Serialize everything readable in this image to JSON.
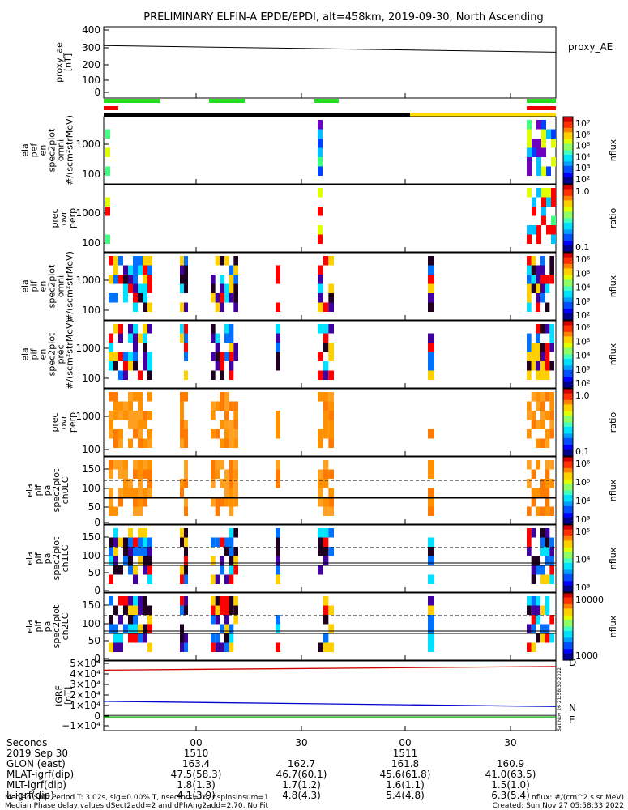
{
  "title": "PRELIMINARY ELFIN-A EPDE/EPDI, alt=458km, 2019-09-30, North Ascending",
  "colors": {
    "green_bar": "#22dd22",
    "red_bar": "#ee0000",
    "black_bar": "#000000",
    "yellow_bar": "#ffdd00",
    "igrf_d": "#cc0000",
    "igrf_n": "#0000cc",
    "igrf_e": "#00aa00"
  },
  "time_ticks": [
    "00",
    "30",
    "00",
    "30"
  ],
  "chart_data": [
    {
      "type": "line",
      "id": "proxy_ae",
      "ylabel": "proxy_ae\n[nT]",
      "yticks": [
        "400",
        "300",
        "200",
        "100",
        "0"
      ],
      "ylim": [
        0,
        400
      ],
      "legend": "proxy_AE",
      "x": [
        0,
        1
      ],
      "values": [
        300,
        258
      ]
    },
    {
      "type": "heatmap",
      "id": "ela_pef",
      "ylabel": "ela\npef\nen\nspec2plot\nomni\n#/(scm²strMeV)",
      "yticks": [
        "1000",
        "100"
      ],
      "colorbar": {
        "ticks": [
          "10⁷",
          "10⁶",
          "10⁵",
          "10⁴",
          "10³",
          "10²"
        ],
        "label": "nflux"
      }
    },
    {
      "type": "heatmap",
      "id": "prec_ovr_perp_e",
      "ylabel": "prec\novr\nperp",
      "yticks": [
        "1000",
        "100"
      ],
      "colorbar": {
        "ticks": [
          "1.0",
          "0.1"
        ],
        "label": "ratio"
      }
    },
    {
      "type": "heatmap",
      "id": "ela_pif_omni",
      "ylabel": "ela\npif\nen\nspec2plot\nomni\n#/(scm²strMeV)",
      "yticks": [
        "1000",
        "100"
      ],
      "colorbar": {
        "ticks": [
          "10⁶",
          "10⁵",
          "10⁴",
          "10³",
          "10²"
        ],
        "label": "nflux"
      }
    },
    {
      "type": "heatmap",
      "id": "ela_pif_prec",
      "ylabel": "ela\npif\nen\nspec2plot\nprec\n#/(scm²strMeV)",
      "yticks": [
        "1000",
        "100"
      ],
      "colorbar": {
        "ticks": [
          "10⁶",
          "10⁵",
          "10⁴",
          "10³",
          "10²"
        ],
        "label": "nflux"
      }
    },
    {
      "type": "heatmap",
      "id": "prec_ovr_perp_i",
      "ylabel": "prec\novr\nperp",
      "yticks": [
        "1000",
        "100"
      ],
      "colorbar": {
        "ticks": [
          "1.0",
          "0.1"
        ],
        "label": "ratio"
      }
    },
    {
      "type": "heatmap",
      "id": "ela_pif_pa_ch0",
      "ylabel": "ela\npif\npa\nspec2plot\nch0LC",
      "yticks": [
        "150",
        "100",
        "50",
        "0"
      ],
      "colorbar": {
        "ticks": [
          "10⁶",
          "10⁵",
          "10⁴",
          "10³"
        ],
        "label": "nflux"
      }
    },
    {
      "type": "heatmap",
      "id": "ela_pif_pa_ch1",
      "ylabel": "ela\npif\npa\nspec2plot\nch1LC",
      "yticks": [
        "150",
        "100",
        "50",
        "0"
      ],
      "colorbar": {
        "ticks": [
          "10⁵",
          "10⁴",
          "10³"
        ],
        "label": "nflux"
      }
    },
    {
      "type": "heatmap",
      "id": "ela_pif_pa_ch2",
      "ylabel": "ela\npif\npa\nspec2plot\nch2LC",
      "yticks": [
        "150",
        "100",
        "50",
        "0"
      ],
      "colorbar": {
        "ticks": [
          "10000",
          "1000"
        ],
        "label": "nflux"
      }
    },
    {
      "type": "line",
      "id": "igrf",
      "ylabel": "IGRF\n[nT]",
      "yticks": [
        "5×10⁴",
        "4×10⁴",
        "3×10⁴",
        "2×10⁴",
        "1×10⁴",
        "0",
        "−1×10⁴"
      ],
      "ylim": [
        -10000,
        50000
      ],
      "series": [
        {
          "name": "D",
          "values": [
            43500,
            47000
          ]
        },
        {
          "name": "N",
          "values": [
            13500,
            8500
          ]
        },
        {
          "name": "E",
          "values": [
            -1500,
            -1500
          ]
        }
      ]
    }
  ],
  "footer": {
    "rows": [
      {
        "label": "Seconds",
        "values": [
          "00",
          "30",
          "00",
          "30"
        ]
      },
      {
        "label": "2019 Sep 30",
        "values": [
          "1510",
          "",
          "1511",
          ""
        ]
      },
      {
        "label": "GLON (east)",
        "values": [
          "163.4",
          "162.7",
          "161.8",
          "160.9"
        ]
      },
      {
        "label": "MLAT-igrf(dip)",
        "values": [
          "47.5(58.3)",
          "46.7(60.1)",
          "45.6(61.8)",
          "41.0(63.5)"
        ]
      },
      {
        "label": "MLT-igrf(dip)",
        "values": [
          "1.8(1.3)",
          "1.7(1.2)",
          "1.6(1.1)",
          "1.5(1.0)"
        ]
      },
      {
        "label": "L-igrf(dip)",
        "values": [
          "4.1(3.9)",
          "4.8(4.3)",
          "5.4(4.8)",
          "6.3(5.4)"
        ]
      }
    ],
    "note1": "Median Spin Period T: 3.02s, sig=0.00% T, nsectors=16, nspinsinsum=1",
    "note2": "Median Phase delay values dSect2add=2 and dPhAng2add=2.70, No Fit",
    "units": "nflux: #/(cm^2 s sr MeV)",
    "created": "Created: Sun Nov 27 05:58:33 2022",
    "side_stamp": "Sat Nov 26 21:58:30 2022"
  }
}
